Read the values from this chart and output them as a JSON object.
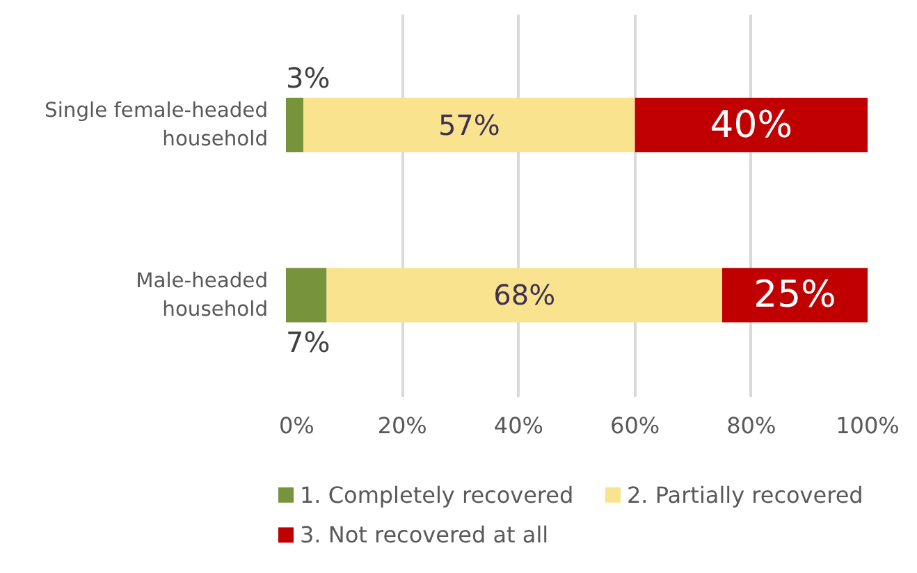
{
  "chart_data": {
    "type": "bar",
    "orientation": "horizontal",
    "stacked": true,
    "categories": [
      "Single female-headed household",
      "Male-headed household"
    ],
    "series": [
      {
        "name": "1.  Completely recovered",
        "color": "#77933c",
        "values": [
          3,
          7
        ],
        "value_labels": [
          "3%",
          "7%"
        ]
      },
      {
        "name": "2. Partially recovered",
        "color": "#f9e38f",
        "values": [
          57,
          68
        ],
        "value_labels": [
          "57%",
          "68%"
        ]
      },
      {
        "name": "3. Not recovered at all",
        "color": "#c00000",
        "values": [
          40,
          25
        ],
        "value_labels": [
          "40%",
          "25%"
        ]
      }
    ],
    "xlim": [
      0,
      100
    ],
    "xticks": [
      {
        "value": 0,
        "label": "0%"
      },
      {
        "value": 20,
        "label": "20%"
      },
      {
        "value": 40,
        "label": "40%"
      },
      {
        "value": 60,
        "label": "60%"
      },
      {
        "value": 80,
        "label": "80%"
      },
      {
        "value": 100,
        "label": "100%"
      }
    ],
    "grid": "x",
    "legend": "bottom"
  }
}
